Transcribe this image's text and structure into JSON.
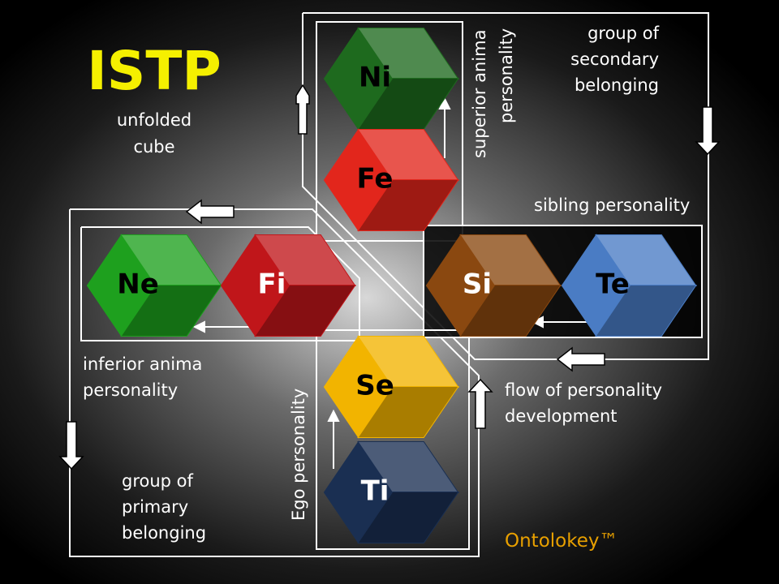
{
  "title": "ISTP",
  "subtitle": [
    "unfolded",
    "cube"
  ],
  "nodes": [
    {
      "label": "Ni",
      "color": "#1e6a1e",
      "text_color": "#000000"
    },
    {
      "label": "Fe",
      "color": "#e2261c",
      "text_color": "#000000"
    },
    {
      "label": "Ne",
      "color": "#1ea01e",
      "text_color": "#000000"
    },
    {
      "label": "Fi",
      "color": "#c0161a",
      "text_color": "#ffffff"
    },
    {
      "label": "Si",
      "color": "#8a4810",
      "text_color": "#ffffff"
    },
    {
      "label": "Te",
      "color": "#4a7cc4",
      "text_color": "#000000"
    },
    {
      "label": "Se",
      "color": "#f2b400",
      "text_color": "#000000"
    },
    {
      "label": "Ti",
      "color": "#1a2f52",
      "text_color": "#ffffff"
    }
  ],
  "labels": {
    "superior_anima": [
      "superior anima",
      "personality"
    ],
    "secondary_group": [
      "group of",
      "secondary",
      "belonging"
    ],
    "sibling": [
      "sibling personality"
    ],
    "inferior_anima": [
      "inferior anima",
      "personality"
    ],
    "flow": [
      "flow of personality",
      "development"
    ],
    "ego": [
      "Ego personality"
    ],
    "primary_group": [
      "group of",
      "primary",
      "belonging"
    ]
  },
  "brand": "Ontolokey™"
}
